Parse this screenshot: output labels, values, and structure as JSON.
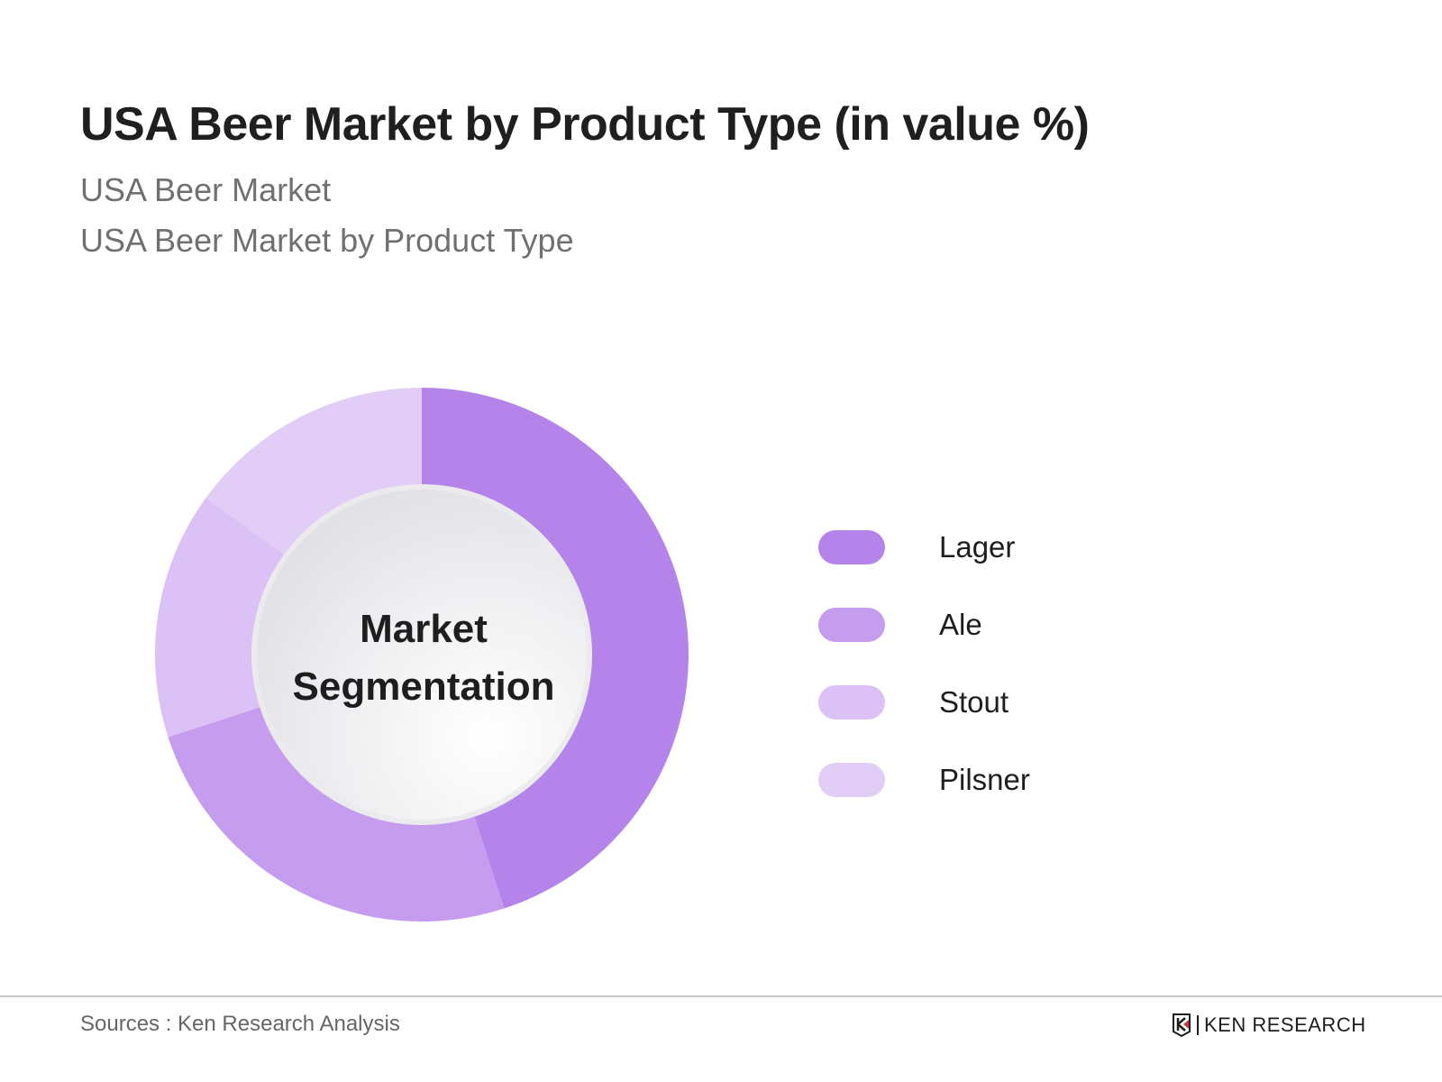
{
  "header": {
    "title": "USA Beer Market by Product Type (in value %)",
    "subtitle_1": "USA Beer Market",
    "subtitle_2": "USA Beer Market by Product Type"
  },
  "center_label": {
    "line1": "Market",
    "line2": "Segmentation"
  },
  "legend": {
    "items": [
      {
        "label": "Lager",
        "color": "#b584ea"
      },
      {
        "label": "Ale",
        "color": "#c59cee"
      },
      {
        "label": "Stout",
        "color": "#dbc1f6"
      },
      {
        "label": "Pilsner",
        "color": "#e2cdf7"
      }
    ]
  },
  "footer": {
    "sources": "Sources : Ken Research Analysis",
    "logo_text": "KEN RESEARCH"
  },
  "chart_data": {
    "type": "pie",
    "subtype": "donut",
    "title": "USA Beer Market by Product Type (in value %)",
    "categories": [
      "Lager",
      "Ale",
      "Stout",
      "Pilsner"
    ],
    "values": [
      45,
      25,
      15,
      15
    ],
    "colors": [
      "#b584ea",
      "#c59cee",
      "#dbc1f6",
      "#e2cdf7"
    ],
    "center_text": "Market Segmentation",
    "legend_position": "right",
    "note": "Values estimated from slice angles; no data labels shown"
  }
}
